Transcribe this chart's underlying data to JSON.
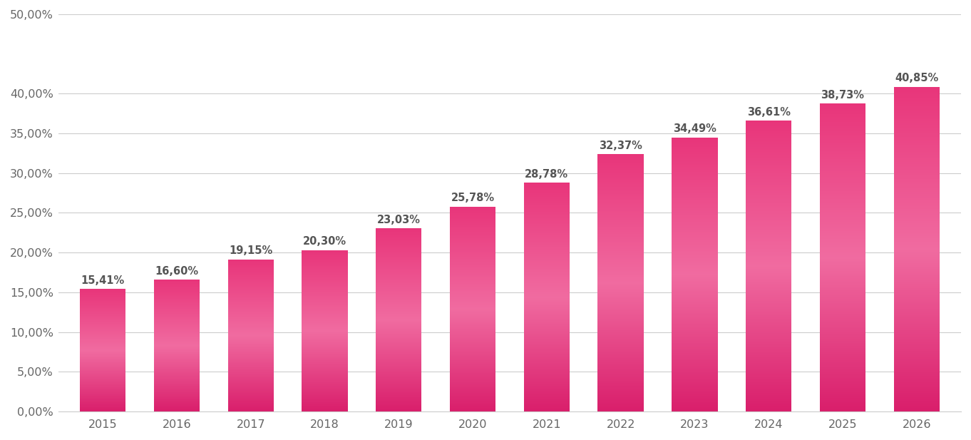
{
  "categories": [
    "2015",
    "2016",
    "2017",
    "2018",
    "2019",
    "2020",
    "2021",
    "2022",
    "2023",
    "2024",
    "2025",
    "2026"
  ],
  "values": [
    15.41,
    16.6,
    19.15,
    20.3,
    23.03,
    25.78,
    28.78,
    32.37,
    34.49,
    36.61,
    38.73,
    40.85
  ],
  "labels": [
    "15,41%",
    "16,60%",
    "19,15%",
    "20,30%",
    "23,03%",
    "25,78%",
    "28,78%",
    "32,37%",
    "34,49%",
    "36,61%",
    "38,73%",
    "40,85%"
  ],
  "bar_color_bottom": "#D91E6B",
  "bar_color_mid": "#F06BA0",
  "bar_color_top": "#E8357A",
  "ylim": [
    0,
    50
  ],
  "yticks": [
    0,
    5,
    10,
    15,
    20,
    25,
    30,
    35,
    40,
    50
  ],
  "ytick_labels": [
    "0,00%",
    "5,00%",
    "10,00%",
    "15,00%",
    "20,00%",
    "25,00%",
    "30,00%",
    "35,00%",
    "40,00%",
    "50,00%"
  ],
  "background_color": "#ffffff",
  "grid_color": "#cccccc",
  "label_color": "#555555",
  "label_fontsize": 10.5,
  "tick_fontsize": 11.5,
  "bar_width": 0.62
}
